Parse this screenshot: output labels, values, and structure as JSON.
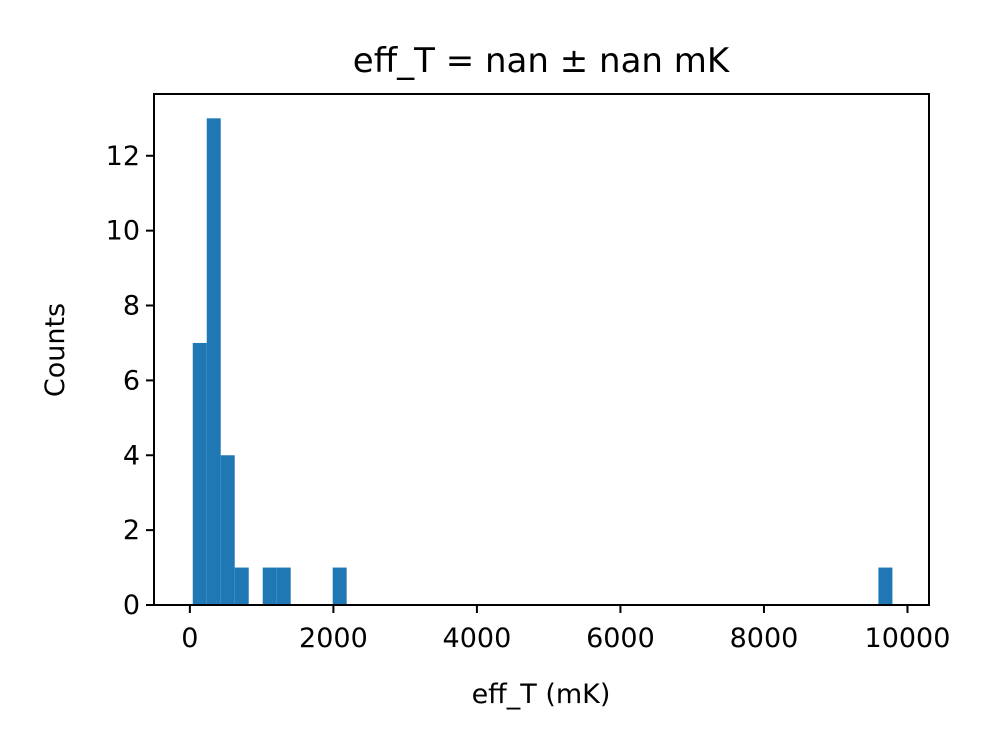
{
  "chart_data": {
    "type": "bar",
    "title": "eff_T = nan  ± nan mK",
    "xlabel": "eff_T (mK)",
    "ylabel": "Counts",
    "xlim": [
      -500,
      10300
    ],
    "ylim": [
      0,
      13.65
    ],
    "xticks": [
      0,
      2000,
      4000,
      6000,
      8000,
      10000
    ],
    "xtick_labels": [
      "0",
      "2000",
      "4000",
      "6000",
      "8000",
      "10000"
    ],
    "yticks": [
      0,
      2,
      4,
      6,
      8,
      10,
      12
    ],
    "ytick_labels": [
      "0",
      "2",
      "4",
      "6",
      "8",
      "10",
      "12"
    ],
    "bin_width": 195,
    "bin_starts": [
      40,
      235,
      430,
      625,
      1015,
      1210,
      1990,
      9595
    ],
    "values": [
      7,
      13,
      4,
      1,
      1,
      1,
      1,
      1
    ],
    "grid": false,
    "legend": "none",
    "bar_color": "#1f77b4"
  }
}
